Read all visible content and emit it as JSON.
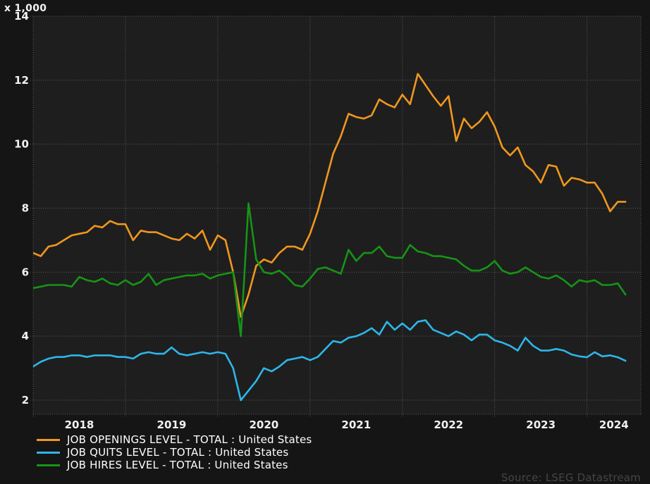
{
  "header": {
    "unit_label": "x 1,000"
  },
  "source": {
    "label": "Source: LSEG Datastream"
  },
  "colors": {
    "background": "#151515",
    "plot_background": "#1e1e1e",
    "grid": "#5a5a5a",
    "text": "#f2f2f2",
    "legend_text": "#ffffff",
    "source_text": "#45454c"
  },
  "chart_data": {
    "type": "line",
    "title": "",
    "xlabel": "",
    "ylabel": "x 1,000",
    "grid": true,
    "legend_position": "bottom-left",
    "x_start": "2018-01",
    "x_frequency": "monthly",
    "x_end": "2024-06",
    "x_domain_months": 79,
    "x_tick_labels": [
      "2018",
      "2019",
      "2020",
      "2021",
      "2022",
      "2023",
      "2024"
    ],
    "y_ticks": [
      2,
      4,
      6,
      8,
      10,
      12,
      14
    ],
    "ylim": [
      1.56,
      14
    ],
    "series": [
      {
        "key": "openings",
        "label": "JOB OPENINGS LEVEL - TOTAL : United States",
        "color": "#f0971e",
        "values": [
          6.6,
          6.5,
          6.8,
          6.85,
          7.0,
          7.15,
          7.2,
          7.25,
          7.45,
          7.4,
          7.6,
          7.5,
          7.5,
          7.0,
          7.3,
          7.25,
          7.25,
          7.15,
          7.05,
          7.0,
          7.2,
          7.05,
          7.3,
          6.7,
          7.15,
          7.0,
          6.0,
          4.6,
          5.3,
          6.2,
          6.4,
          6.3,
          6.6,
          6.8,
          6.8,
          6.7,
          7.2,
          7.9,
          8.8,
          9.7,
          10.25,
          10.95,
          10.85,
          10.8,
          10.9,
          11.4,
          11.25,
          11.15,
          11.55,
          11.25,
          12.2,
          11.85,
          11.5,
          11.2,
          11.5,
          10.1,
          10.8,
          10.5,
          10.7,
          11.0,
          10.55,
          9.9,
          9.65,
          9.9,
          9.35,
          9.15,
          8.8,
          9.35,
          9.3,
          8.7,
          8.95,
          8.9,
          8.8,
          8.8,
          8.45,
          7.9,
          8.2,
          8.2
        ]
      },
      {
        "key": "quits",
        "label": "JOB QUITS LEVEL - TOTAL : United States",
        "color": "#2eb6e9",
        "values": [
          3.05,
          3.2,
          3.3,
          3.35,
          3.35,
          3.4,
          3.4,
          3.35,
          3.4,
          3.4,
          3.4,
          3.35,
          3.35,
          3.3,
          3.45,
          3.5,
          3.45,
          3.45,
          3.65,
          3.45,
          3.4,
          3.45,
          3.5,
          3.45,
          3.5,
          3.45,
          3.0,
          2.0,
          2.3,
          2.6,
          3.0,
          2.9,
          3.05,
          3.25,
          3.3,
          3.35,
          3.25,
          3.35,
          3.6,
          3.85,
          3.8,
          3.95,
          4.0,
          4.1,
          4.25,
          4.05,
          4.45,
          4.2,
          4.4,
          4.2,
          4.45,
          4.5,
          4.2,
          4.1,
          4.0,
          4.15,
          4.05,
          3.87,
          4.05,
          4.05,
          3.87,
          3.8,
          3.7,
          3.55,
          3.95,
          3.7,
          3.55,
          3.55,
          3.6,
          3.55,
          3.43,
          3.37,
          3.34,
          3.5,
          3.37,
          3.4,
          3.34,
          3.23
        ]
      },
      {
        "key": "hires",
        "label": "JOB HIRES LEVEL - TOTAL : United States",
        "color": "#169416",
        "values": [
          5.5,
          5.55,
          5.6,
          5.6,
          5.6,
          5.55,
          5.85,
          5.75,
          5.7,
          5.8,
          5.65,
          5.6,
          5.75,
          5.6,
          5.7,
          5.95,
          5.6,
          5.75,
          5.8,
          5.85,
          5.9,
          5.9,
          5.95,
          5.8,
          5.9,
          5.95,
          6.0,
          4.0,
          8.15,
          6.4,
          6.0,
          5.95,
          6.05,
          5.85,
          5.6,
          5.55,
          5.8,
          6.1,
          6.15,
          6.05,
          5.95,
          6.7,
          6.35,
          6.6,
          6.6,
          6.8,
          6.5,
          6.45,
          6.45,
          6.85,
          6.65,
          6.6,
          6.5,
          6.5,
          6.45,
          6.4,
          6.2,
          6.05,
          6.05,
          6.15,
          6.35,
          6.05,
          5.95,
          6.0,
          6.15,
          6.0,
          5.85,
          5.8,
          5.9,
          5.75,
          5.55,
          5.75,
          5.7,
          5.75,
          5.6,
          5.6,
          5.65,
          5.3
        ]
      }
    ]
  }
}
